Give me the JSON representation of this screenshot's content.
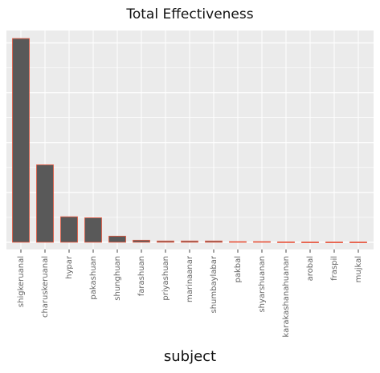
{
  "chart_data": {
    "type": "bar",
    "title": "Total Effectiveness",
    "xlabel": "subject",
    "ylabel": "",
    "categories": [
      "shigkeruanal",
      "charuskeruanal",
      "hypar",
      "pakashuan",
      "shunghuan",
      "farashuan",
      "priyashuan",
      "marinaanar",
      "shumbaylabar",
      "pakbal",
      "shyarshuanan",
      "karakashanahuanan",
      "arobal",
      "fraspil",
      "mujkal"
    ],
    "values": [
      100,
      38,
      12.5,
      12,
      3,
      1,
      0.6,
      0.6,
      0.6,
      0.3,
      0.3,
      0.15,
      0.1,
      0.1,
      0.1
    ],
    "ylim": [
      0,
      106
    ],
    "grid": true,
    "legend": "none",
    "colors": {
      "panel": "#ebebeb",
      "grid": "#ffffff",
      "bar_fill": "#595959",
      "bar_stroke": "#e8573f"
    }
  }
}
